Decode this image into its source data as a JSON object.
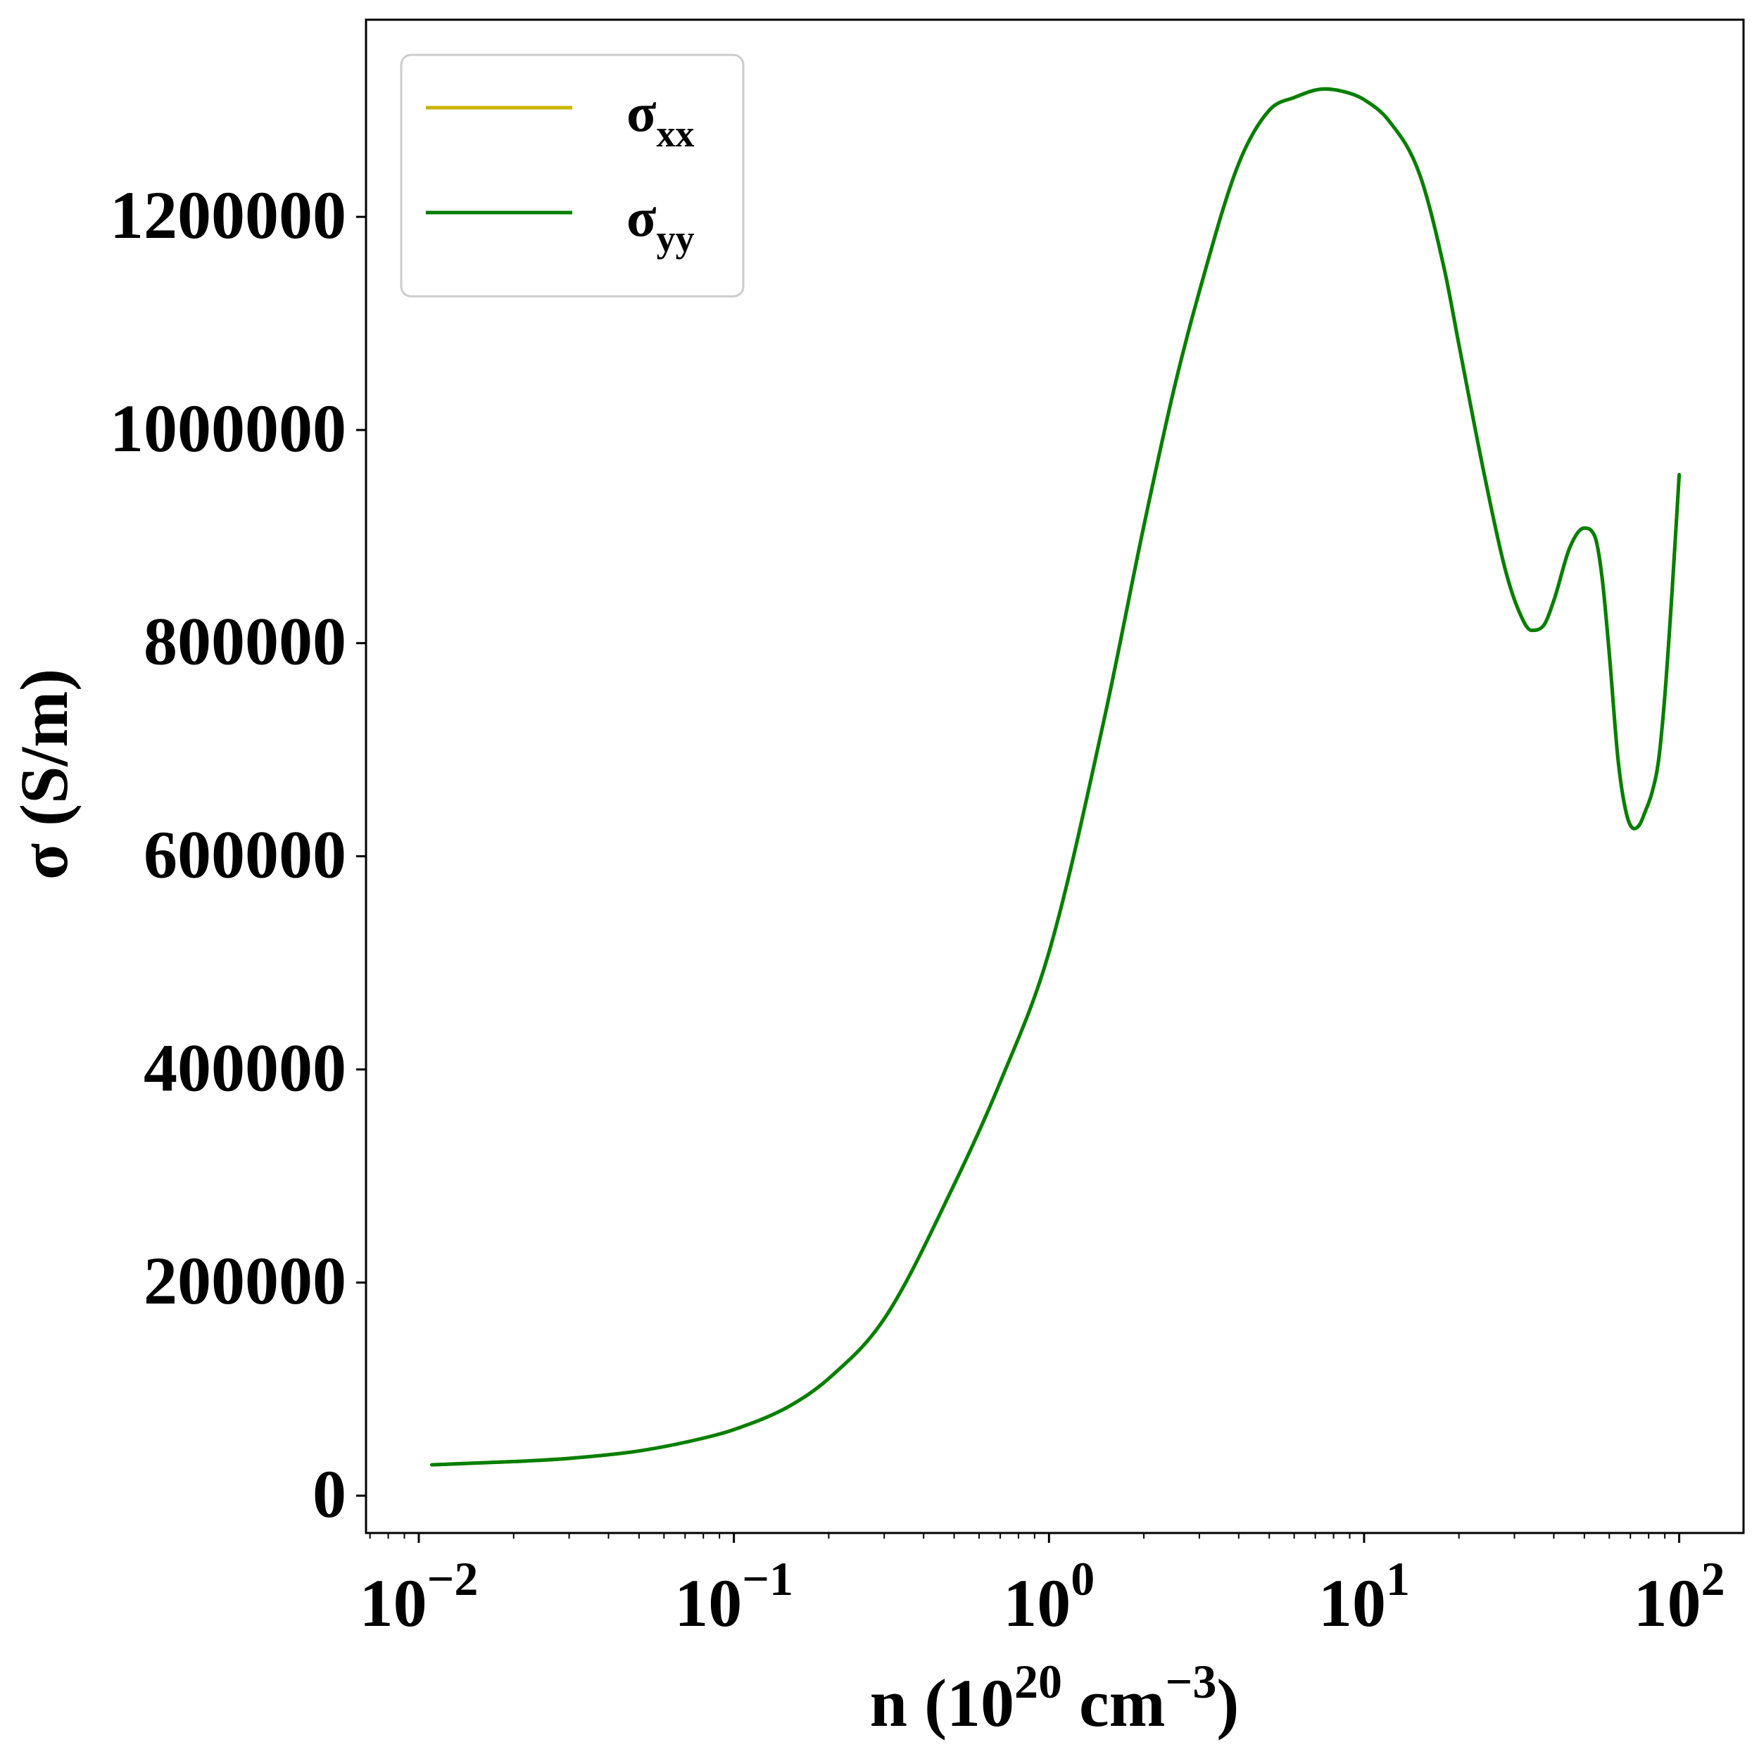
{
  "chart_data": {
    "type": "line",
    "xscale": "log",
    "xlim": [
      0.0068,
      160
    ],
    "ylim": [
      -35000,
      1385000
    ],
    "xlabel": {
      "prefix": "n (10",
      "sup1": "20",
      "middle": " cm",
      "sup2": "−3",
      "suffix": ")"
    },
    "ylabel": "σ (S/m)",
    "x_ticks": [
      {
        "value": 0.01,
        "base": "10",
        "exp": "−2"
      },
      {
        "value": 0.1,
        "base": "10",
        "exp": "−1"
      },
      {
        "value": 1,
        "base": "10",
        "exp": "0"
      },
      {
        "value": 10,
        "base": "10",
        "exp": "1"
      },
      {
        "value": 100,
        "base": "10",
        "exp": "2"
      }
    ],
    "y_ticks": [
      {
        "value": 0,
        "label": "0"
      },
      {
        "value": 200000,
        "label": "200000"
      },
      {
        "value": 400000,
        "label": "400000"
      },
      {
        "value": 600000,
        "label": "600000"
      },
      {
        "value": 800000,
        "label": "800000"
      },
      {
        "value": 1000000,
        "label": "1000000"
      },
      {
        "value": 1200000,
        "label": "1200000"
      }
    ],
    "legend": {
      "placement": "upper-left",
      "entries": [
        {
          "base": "σ",
          "sub": "xx",
          "color": "#c8b400"
        },
        {
          "base": "σ",
          "sub": "yy",
          "color": "#007f00"
        }
      ]
    },
    "series": [
      {
        "color": "#c8b400",
        "x": [
          0.011,
          0.02,
          0.03,
          0.05,
          0.08,
          0.1,
          0.15,
          0.2,
          0.3,
          0.5,
          0.7,
          1.0,
          1.5,
          2.0,
          2.5,
          3.0,
          4.0,
          5.0,
          6.0,
          7.5,
          9.0,
          10.0,
          12.0,
          15.0,
          18.0,
          20.0,
          24.0,
          28.0,
          31.0,
          34.0,
          37.0,
          40.0,
          45.0,
          50.0,
          54.0,
          57.0,
          60.0,
          64.0,
          68.0,
          72.0,
          75.0,
          78.0,
          82.0,
          86.0,
          90.0,
          95.0,
          100.0
        ],
        "y": [
          29000,
          32000,
          35000,
          42000,
          54000,
          62000,
          84000,
          110000,
          166000,
          292000,
          388000,
          510000,
          730000,
          910000,
          1040000,
          1130000,
          1250000,
          1300000,
          1312000,
          1320000,
          1316000,
          1310000,
          1290000,
          1240000,
          1150000,
          1080000,
          960000,
          870000,
          830000,
          812000,
          816000,
          840000,
          890000,
          908000,
          900000,
          860000,
          790000,
          690000,
          640000,
          626000,
          630000,
          642000,
          660000,
          690000,
          750000,
          850000,
          958000
        ]
      },
      {
        "color": "#007f00",
        "x": [
          0.011,
          0.02,
          0.03,
          0.05,
          0.08,
          0.1,
          0.15,
          0.2,
          0.3,
          0.5,
          0.7,
          1.0,
          1.5,
          2.0,
          2.5,
          3.0,
          4.0,
          5.0,
          6.0,
          7.5,
          9.0,
          10.0,
          12.0,
          15.0,
          18.0,
          20.0,
          24.0,
          28.0,
          31.0,
          34.0,
          37.0,
          40.0,
          45.0,
          50.0,
          54.0,
          57.0,
          60.0,
          64.0,
          68.0,
          72.0,
          75.0,
          78.0,
          82.0,
          86.0,
          90.0,
          95.0,
          100.0
        ],
        "y": [
          29000,
          32000,
          35000,
          42000,
          54000,
          62000,
          84000,
          110000,
          166000,
          292000,
          388000,
          510000,
          730000,
          910000,
          1040000,
          1130000,
          1250000,
          1300000,
          1312000,
          1320000,
          1316000,
          1310000,
          1290000,
          1240000,
          1150000,
          1080000,
          960000,
          870000,
          830000,
          812000,
          816000,
          840000,
          890000,
          908000,
          900000,
          860000,
          790000,
          690000,
          640000,
          626000,
          630000,
          642000,
          660000,
          690000,
          750000,
          850000,
          958000
        ]
      }
    ]
  }
}
